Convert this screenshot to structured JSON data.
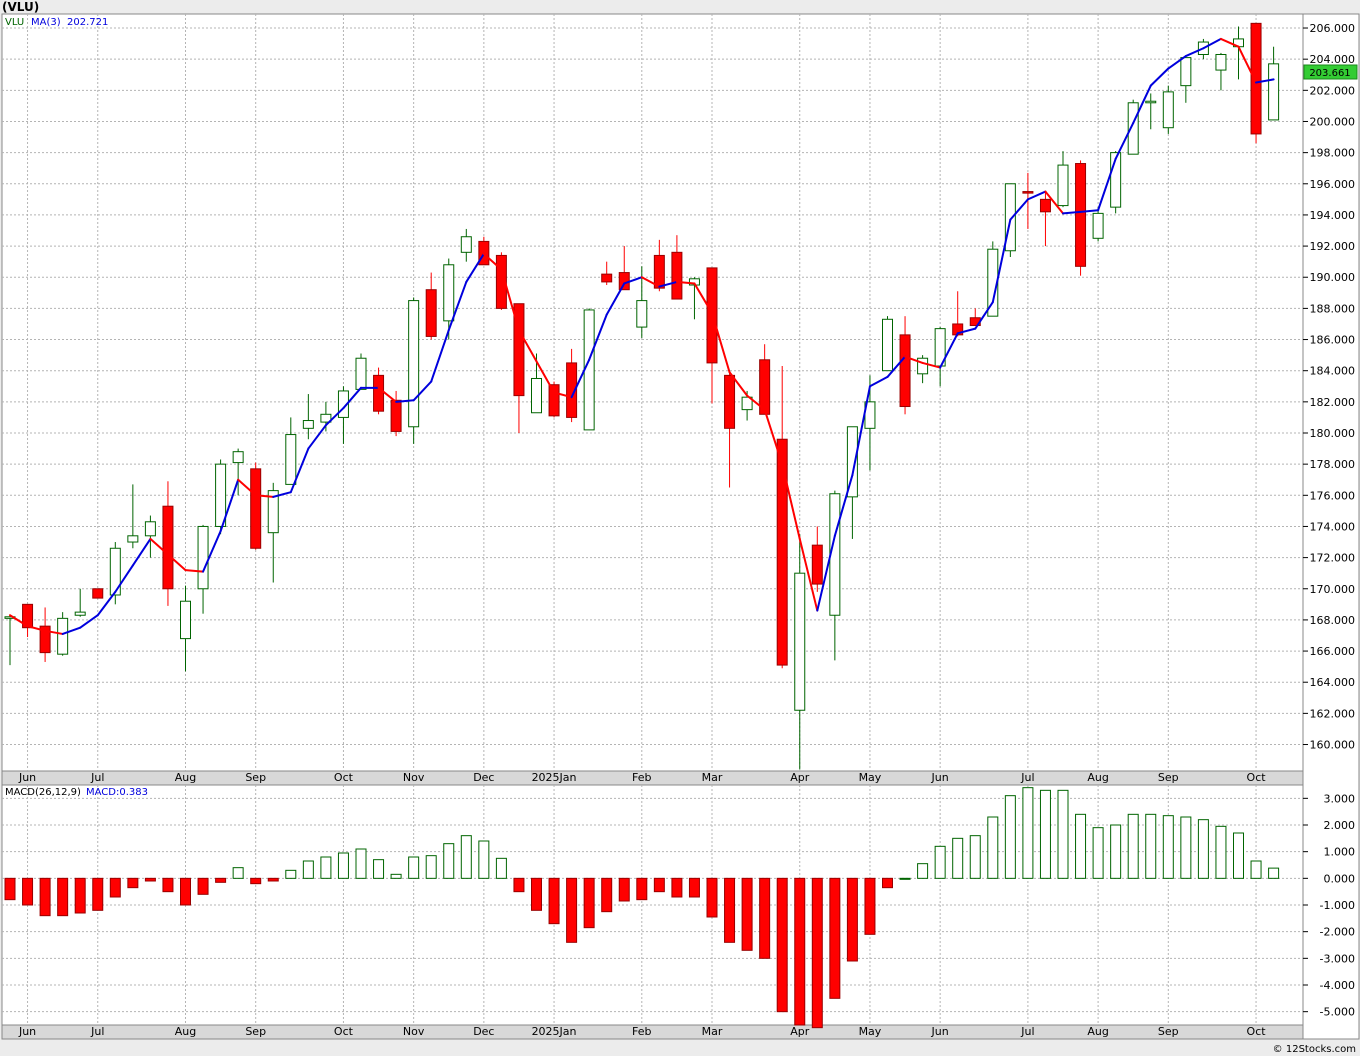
{
  "ticker": "(VLU)",
  "price_legend": {
    "symbol": "VLU",
    "ma_label": "MA(3)",
    "ma_value": "202.721"
  },
  "macd_legend": {
    "label": "MACD(26,12,9)",
    "value_label": "MACD:0.383"
  },
  "last_price_tag": "203.661",
  "credit": "© 12Stocks.com",
  "colors": {
    "up": "#006400",
    "down": "#ff0000",
    "ma_up": "#0000dd",
    "ma_down": "#ff0000",
    "grid": "#b4b4b4",
    "tag": "#33cc33"
  },
  "chart_data": [
    {
      "type": "candlestick",
      "title": "",
      "x_tick_labels": [
        "Jun",
        "Jul",
        "Aug",
        "Sep",
        "Oct",
        "Nov",
        "Dec",
        "2025Jan",
        "Feb",
        "Mar",
        "Apr",
        "May",
        "Jun",
        "Jul",
        "Aug",
        "Sep",
        "Oct"
      ],
      "x_tick_weeks": [
        1,
        5,
        10,
        14,
        19,
        23,
        27,
        31,
        36,
        40,
        45,
        49,
        53,
        58,
        62,
        66,
        71
      ],
      "y_ticks": [
        "160.000",
        "162.000",
        "164.000",
        "166.000",
        "168.000",
        "170.000",
        "172.000",
        "174.000",
        "176.000",
        "178.000",
        "180.000",
        "182.000",
        "184.000",
        "186.000",
        "188.000",
        "190.000",
        "192.000",
        "194.000",
        "196.000",
        "198.000",
        "200.000",
        "202.000",
        "204.000",
        "206.000"
      ],
      "ylim": [
        158.3,
        206.9
      ],
      "grid": true,
      "series": [
        {
          "name": "VLU",
          "ohlc": [
            [
              168.1,
              168.3,
              165.1,
              168.2
            ],
            [
              169.0,
              169.0,
              166.9,
              167.5
            ],
            [
              167.6,
              168.8,
              165.3,
              165.9
            ],
            [
              165.8,
              168.5,
              165.7,
              168.1
            ],
            [
              168.3,
              170.0,
              168.2,
              168.5
            ],
            [
              170.0,
              170.0,
              169.5,
              169.4
            ],
            [
              169.6,
              173.0,
              169.0,
              172.6
            ],
            [
              173.0,
              176.7,
              172.6,
              173.4
            ],
            [
              173.4,
              174.7,
              172.0,
              174.3
            ],
            [
              175.3,
              176.9,
              168.9,
              170.0
            ],
            [
              166.8,
              170.2,
              164.7,
              169.2
            ],
            [
              170.0,
              174.1,
              168.4,
              174.0
            ],
            [
              174.0,
              178.3,
              173.5,
              178.0
            ],
            [
              178.1,
              179.0,
              176.0,
              178.8
            ],
            [
              177.7,
              178.1,
              172.5,
              172.6
            ],
            [
              173.6,
              176.8,
              170.4,
              176.3
            ],
            [
              176.7,
              181.0,
              176.7,
              179.9
            ],
            [
              180.3,
              182.5,
              179.6,
              180.8
            ],
            [
              180.7,
              182.0,
              180.1,
              181.2
            ],
            [
              181.0,
              183.0,
              179.3,
              182.7
            ],
            [
              182.8,
              185.1,
              182.8,
              184.8
            ],
            [
              183.7,
              184.2,
              181.2,
              181.4
            ],
            [
              182.1,
              182.7,
              179.8,
              180.1
            ],
            [
              180.4,
              188.7,
              179.3,
              188.5
            ],
            [
              189.2,
              190.3,
              186.0,
              186.2
            ],
            [
              187.2,
              191.2,
              186.0,
              190.8
            ],
            [
              191.6,
              193.1,
              191.0,
              192.6
            ],
            [
              192.3,
              192.6,
              190.8,
              190.8
            ],
            [
              191.4,
              191.6,
              187.9,
              188.0
            ],
            [
              188.3,
              188.3,
              180.0,
              182.4
            ],
            [
              181.3,
              185.1,
              181.3,
              183.5
            ],
            [
              183.1,
              183.3,
              181.0,
              181.1
            ],
            [
              184.5,
              185.4,
              180.7,
              181.0
            ],
            [
              180.2,
              188.0,
              180.2,
              187.9
            ],
            [
              190.2,
              191.0,
              189.5,
              189.7
            ],
            [
              190.3,
              192.0,
              189.2,
              189.2
            ],
            [
              186.8,
              190.7,
              186.1,
              188.5
            ],
            [
              191.4,
              192.4,
              189.1,
              189.3
            ],
            [
              191.6,
              192.7,
              188.6,
              188.6
            ],
            [
              189.5,
              190.0,
              187.3,
              189.9
            ],
            [
              190.6,
              190.6,
              181.9,
              184.5
            ],
            [
              183.7,
              184.0,
              176.5,
              180.3
            ],
            [
              181.5,
              182.7,
              180.8,
              182.3
            ],
            [
              184.7,
              185.7,
              181.6,
              181.2
            ],
            [
              179.6,
              184.3,
              164.9,
              165.1
            ],
            [
              162.2,
              173.5,
              158.4,
              171.0
            ],
            [
              172.8,
              174.0,
              169.8,
              170.3
            ],
            [
              168.3,
              176.3,
              165.4,
              176.1
            ],
            [
              175.9,
              180.4,
              173.2,
              180.4
            ],
            [
              180.3,
              183.7,
              177.6,
              182.0
            ],
            [
              184.0,
              187.5,
              184.3,
              187.3
            ],
            [
              186.3,
              187.5,
              181.2,
              181.7
            ],
            [
              183.8,
              185.0,
              183.2,
              184.8
            ],
            [
              184.3,
              186.8,
              183.0,
              186.7
            ],
            [
              187.0,
              189.1,
              186.2,
              186.3
            ],
            [
              187.4,
              188.0,
              186.9,
              186.9
            ],
            [
              187.5,
              192.3,
              187.5,
              191.8
            ],
            [
              191.7,
              196.0,
              191.3,
              196.0
            ],
            [
              195.5,
              196.7,
              193.1,
              195.4
            ],
            [
              195.0,
              195.5,
              192.0,
              194.2
            ],
            [
              194.6,
              198.1,
              194.5,
              197.2
            ],
            [
              197.3,
              197.5,
              190.1,
              190.7
            ],
            [
              192.5,
              194.5,
              192.3,
              194.1
            ],
            [
              194.5,
              198.1,
              194.1,
              198.0
            ],
            [
              197.9,
              201.4,
              197.9,
              201.2
            ],
            [
              201.2,
              201.8,
              199.5,
              201.3
            ],
            [
              199.6,
              202.3,
              199.2,
              201.9
            ],
            [
              202.3,
              204.0,
              201.2,
              204.1
            ],
            [
              204.3,
              205.3,
              204.0,
              205.1
            ],
            [
              203.3,
              204.4,
              202.0,
              204.3
            ],
            [
              204.8,
              206.1,
              202.7,
              205.3
            ],
            [
              206.3,
              206.3,
              198.6,
              199.2
            ],
            [
              200.1,
              204.8,
              200.1,
              203.7
            ]
          ]
        },
        {
          "name": "MA(3)",
          "values": [
            168.3,
            167.6,
            167.3,
            167.1,
            167.5,
            168.3,
            169.8,
            171.5,
            173.2,
            172.2,
            171.2,
            171.1,
            173.7,
            177.0,
            176.0,
            175.9,
            176.2,
            179.0,
            180.5,
            181.6,
            182.9,
            182.9,
            182.0,
            182.1,
            183.3,
            186.6,
            189.7,
            191.5,
            190.5,
            186.6,
            184.6,
            182.6,
            182.3,
            184.7,
            187.6,
            189.6,
            190.0,
            189.4,
            189.7,
            189.6,
            187.7,
            183.9,
            182.4,
            181.5,
            178.0,
            173.2,
            168.6,
            173.4,
            177.3,
            183.0,
            183.6,
            184.9,
            184.5,
            184.2,
            186.4,
            186.7,
            188.4,
            193.7,
            195.0,
            195.5,
            194.1,
            194.2,
            194.3,
            197.6,
            199.9,
            202.3,
            203.4,
            204.2,
            204.7,
            205.3,
            204.8,
            202.5,
            202.7
          ]
        }
      ]
    },
    {
      "type": "bar",
      "title": "",
      "name": "MACD(26,12,9)",
      "x_tick_labels": [
        "Jun",
        "Jul",
        "Aug",
        "Sep",
        "Oct",
        "Nov",
        "Dec",
        "2025Jan",
        "Feb",
        "Mar",
        "Apr",
        "May",
        "Jun",
        "Jul",
        "Aug",
        "Sep",
        "Oct"
      ],
      "y_ticks": [
        "-5.000",
        "-4.000",
        "-3.000",
        "-2.000",
        "-1.000",
        "0.000",
        "1.000",
        "2.000",
        "3.000"
      ],
      "ylim": [
        -5.5,
        3.5
      ],
      "grid": true,
      "values": [
        -0.8,
        -1.0,
        -1.4,
        -1.4,
        -1.3,
        -1.2,
        -0.7,
        -0.35,
        -0.1,
        -0.5,
        -1.0,
        -0.6,
        -0.15,
        0.4,
        -0.2,
        -0.1,
        0.3,
        0.65,
        0.8,
        0.95,
        1.1,
        0.7,
        0.15,
        0.8,
        0.85,
        1.3,
        1.6,
        1.4,
        0.75,
        -0.5,
        -1.2,
        -1.7,
        -2.4,
        -1.85,
        -1.25,
        -0.85,
        -0.8,
        -0.5,
        -0.7,
        -0.7,
        -1.45,
        -2.4,
        -2.7,
        -3.0,
        -5.0,
        -5.5,
        -5.6,
        -4.5,
        -3.1,
        -2.1,
        -0.35,
        0.0,
        0.55,
        1.2,
        1.5,
        1.6,
        2.3,
        3.1,
        3.4,
        3.3,
        3.3,
        2.4,
        1.9,
        2.0,
        2.4,
        2.4,
        2.35,
        2.3,
        2.2,
        1.95,
        1.7,
        0.65,
        0.383
      ]
    }
  ]
}
